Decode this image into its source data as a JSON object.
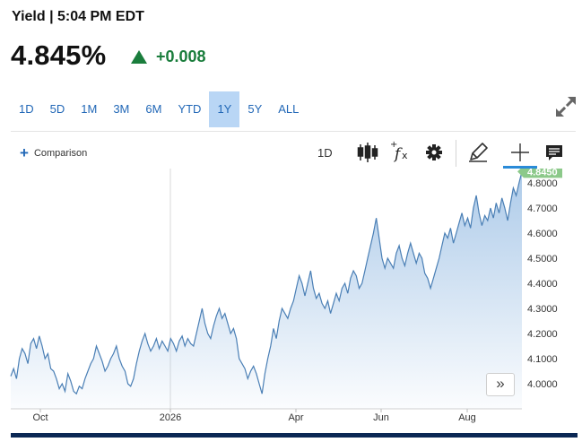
{
  "header": {
    "title": "Yield | 5:04 PM EDT",
    "price": "4.845%",
    "change": "+0.008",
    "change_color": "#1a7d3c"
  },
  "ranges": [
    {
      "label": "1D",
      "active": false
    },
    {
      "label": "5D",
      "active": false
    },
    {
      "label": "1M",
      "active": false
    },
    {
      "label": "3M",
      "active": false
    },
    {
      "label": "6M",
      "active": false
    },
    {
      "label": "YTD",
      "active": false
    },
    {
      "label": "1Y",
      "active": true
    },
    {
      "label": "5Y",
      "active": false
    },
    {
      "label": "ALL",
      "active": false
    }
  ],
  "toolbar": {
    "comparison_label": "Comparison",
    "interval_label": "1D",
    "icons": [
      "candlestick-icon",
      "function-icon",
      "gear-icon",
      "pencil-icon",
      "crosshair-icon",
      "comment-icon"
    ]
  },
  "scroll_label": "»",
  "chart_data": {
    "type": "area",
    "y_ticks": [
      "4.0000",
      "4.1000",
      "4.2000",
      "4.3000",
      "4.4000",
      "4.5000",
      "4.6000",
      "4.7000",
      "4.8000"
    ],
    "x_ticks": [
      "Oct",
      "2026",
      "Apr",
      "Jun",
      "Aug"
    ],
    "ylim": [
      3.94,
      4.9
    ],
    "last_value_label": "4.8450",
    "last_value": 4.845,
    "line_color": "#4a7fb5",
    "fill_color": "#a9c8e8",
    "series": [
      {
        "values": [
          4.03,
          4.06,
          4.02,
          4.1,
          4.14,
          4.12,
          4.08,
          4.16,
          4.18,
          4.14,
          4.19,
          4.15,
          4.1,
          4.12,
          4.06,
          4.05,
          4.02,
          3.98,
          4.0,
          3.97,
          4.04,
          4.01,
          3.97,
          3.96,
          3.99,
          3.98,
          4.02,
          4.05,
          4.08,
          4.1,
          4.15,
          4.12,
          4.09,
          4.05,
          4.07,
          4.1,
          4.12,
          4.15,
          4.1,
          4.07,
          4.05,
          4.0,
          3.99,
          4.02,
          4.08,
          4.13,
          4.17,
          4.2,
          4.16,
          4.13,
          4.15,
          4.18,
          4.14,
          4.17,
          4.15,
          4.13,
          4.18,
          4.16,
          4.13,
          4.17,
          4.19,
          4.15,
          4.18,
          4.16,
          4.15,
          4.2,
          4.25,
          4.3,
          4.24,
          4.2,
          4.18,
          4.23,
          4.27,
          4.3,
          4.26,
          4.28,
          4.24,
          4.2,
          4.22,
          4.18,
          4.1,
          4.08,
          4.06,
          4.02,
          4.05,
          4.07,
          4.04,
          4.0,
          3.96,
          4.04,
          4.1,
          4.15,
          4.22,
          4.18,
          4.25,
          4.3,
          4.28,
          4.26,
          4.3,
          4.33,
          4.38,
          4.43,
          4.4,
          4.35,
          4.4,
          4.45,
          4.38,
          4.34,
          4.36,
          4.32,
          4.3,
          4.33,
          4.28,
          4.32,
          4.36,
          4.33,
          4.38,
          4.4,
          4.36,
          4.42,
          4.45,
          4.43,
          4.38,
          4.4,
          4.45,
          4.5,
          4.55,
          4.6,
          4.66,
          4.58,
          4.5,
          4.46,
          4.5,
          4.48,
          4.46,
          4.52,
          4.55,
          4.5,
          4.47,
          4.52,
          4.56,
          4.52,
          4.48,
          4.52,
          4.5,
          4.44,
          4.42,
          4.38,
          4.42,
          4.46,
          4.5,
          4.55,
          4.6,
          4.58,
          4.62,
          4.56,
          4.6,
          4.64,
          4.68,
          4.63,
          4.66,
          4.62,
          4.7,
          4.75,
          4.68,
          4.63,
          4.67,
          4.65,
          4.7,
          4.66,
          4.72,
          4.68,
          4.74,
          4.7,
          4.65,
          4.72,
          4.78,
          4.75,
          4.8,
          4.845
        ]
      }
    ]
  }
}
